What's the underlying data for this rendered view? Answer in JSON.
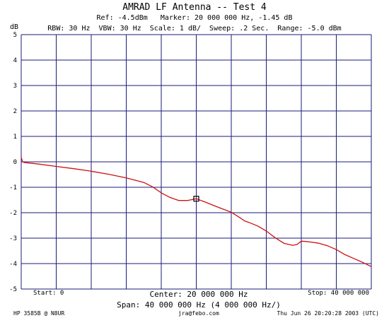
{
  "header": {
    "title": "AMRAD LF Antenna -- Test 4",
    "line2": "Ref: -4.5dBm   Marker: 20 000 000 Hz, -1.45 dB",
    "line3": "RBW: 30 Hz  VBW: 30 Hz  Scale: 1 dB/  Sweep: .2 Sec.  Range: -5.0 dBm"
  },
  "footer": {
    "start": "Start: 0",
    "center": "Center: 20 000 000 Hz",
    "stop": "Stop: 40 000 000",
    "span": "Span: 40 000 000 Hz (4 000 000 Hz/)",
    "instrument": "HP 3585B @ N8UR",
    "email": "jra@febo.com",
    "timestamp": "Thu Jun 26 20:20:28 2003 (UTC)"
  },
  "colors": {
    "grid": "#1b1b7a",
    "trace": "#cc1111",
    "marker": "#000000",
    "text": "#000000"
  },
  "chart_data": {
    "type": "line",
    "ylabel": "dB",
    "xlim": [
      0,
      40000000
    ],
    "ylim": [
      -5,
      5
    ],
    "yticks": [
      5,
      4,
      3,
      2,
      1,
      0,
      -1,
      -2,
      -3,
      -4,
      -5
    ],
    "ytick_labels": [
      "5",
      "4",
      "3",
      "2",
      "1",
      "0",
      "-1",
      "-2",
      "-3",
      "-4",
      "-5"
    ],
    "x_divisions": 10,
    "grid": true,
    "series": [
      {
        "x": [
          0,
          150000,
          400000,
          1000000,
          2000000,
          4000000,
          6000000,
          8000000,
          10000000,
          12000000,
          14000000,
          15000000,
          16000000,
          17000000,
          18000000,
          19000000,
          20000000,
          21000000,
          22000000,
          23000000,
          24000000,
          25000000,
          25500000,
          26000000,
          27000000,
          28000000,
          29000000,
          30000000,
          31000000,
          31500000,
          32000000,
          32500000,
          33000000,
          34000000,
          35000000,
          36000000,
          36500000,
          37000000,
          38000000,
          39000000,
          40000000
        ],
        "y": [
          0.18,
          0,
          -0.03,
          -0.05,
          -0.09,
          -0.18,
          -0.27,
          -0.37,
          -0.49,
          -0.63,
          -0.81,
          -0.98,
          -1.22,
          -1.4,
          -1.52,
          -1.52,
          -1.45,
          -1.58,
          -1.72,
          -1.85,
          -1.98,
          -2.2,
          -2.32,
          -2.38,
          -2.52,
          -2.72,
          -2.98,
          -3.2,
          -3.28,
          -3.25,
          -3.12,
          -3.13,
          -3.15,
          -3.2,
          -3.3,
          -3.45,
          -3.55,
          -3.65,
          -3.8,
          -3.95,
          -4.12
        ]
      }
    ],
    "marker": {
      "x": 20000000,
      "y": -1.45
    }
  }
}
